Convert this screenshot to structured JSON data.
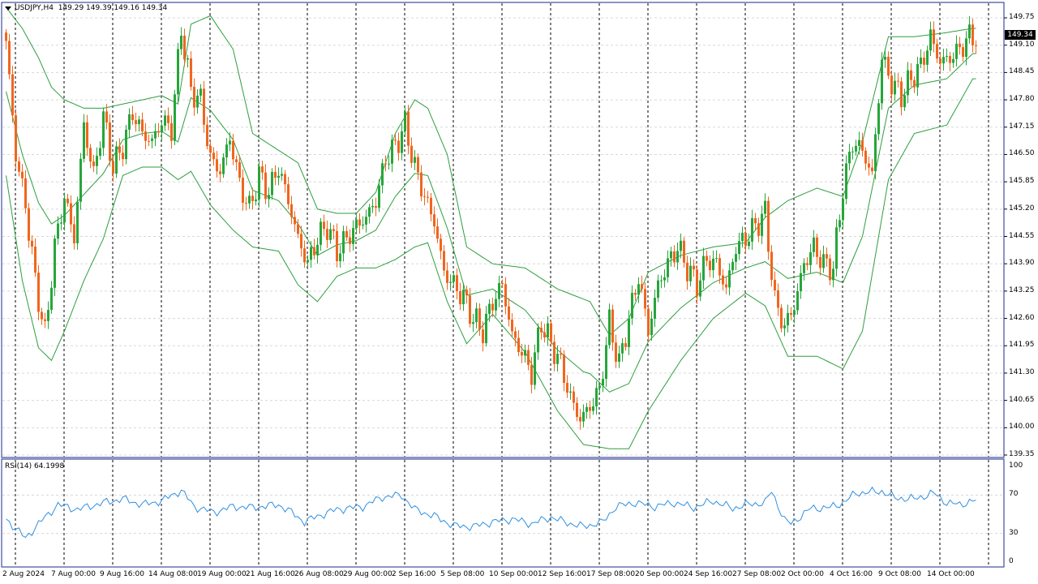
{
  "symbol_header": {
    "symbol": "USDJPY,H4",
    "ohlc": "149.29 149.39 149.16 149.34"
  },
  "price_axis": {
    "labels": [
      "149.75",
      "149.10",
      "148.45",
      "147.80",
      "147.15",
      "146.50",
      "145.85",
      "145.20",
      "144.55",
      "143.90",
      "143.25",
      "142.60",
      "141.95",
      "141.30",
      "140.65",
      "140.00",
      "139.35"
    ],
    "current_price": "149.34"
  },
  "rsi": {
    "label": "RSI(14) 64.1998",
    "axis_labels": [
      "100",
      "70",
      "30",
      "0"
    ]
  },
  "time_axis": {
    "labels": [
      "2 Aug 2024",
      "7 Aug 00:00",
      "9 Aug 16:00",
      "14 Aug 08:00",
      "19 Aug 00:00",
      "21 Aug 16:00",
      "26 Aug 08:00",
      "29 Aug 00:00",
      "2 Sep 16:00",
      "5 Sep 08:00",
      "10 Sep 00:00",
      "12 Sep 16:00",
      "17 Sep 08:00",
      "20 Sep 00:00",
      "24 Sep 16:00",
      "27 Sep 08:00",
      "2 Oct 00:00",
      "4 Oct 16:00",
      "9 Oct 08:00",
      "14 Oct 00:00"
    ]
  },
  "colors": {
    "bull": "#26a63a",
    "bear": "#f0661e",
    "bands": "#2e9e3e",
    "rsi_line": "#2f8fe0",
    "grid": "#d8d8d8",
    "frame": "#1a2a8a"
  },
  "chart_data": {
    "type": "candlestick",
    "anchors_close": [
      [
        0,
        149.2
      ],
      [
        3,
        146.5
      ],
      [
        6,
        145.3
      ],
      [
        9,
        143.5
      ],
      [
        12,
        142.2
      ],
      [
        15,
        144.3
      ],
      [
        18,
        145.5
      ],
      [
        21,
        144.5
      ],
      [
        24,
        147.2
      ],
      [
        27,
        146.0
      ],
      [
        30,
        147.4
      ],
      [
        33,
        146.2
      ],
      [
        36,
        146.7
      ],
      [
        39,
        147.5
      ],
      [
        42,
        147.0
      ],
      [
        45,
        146.8
      ],
      [
        48,
        147.3
      ],
      [
        51,
        147.1
      ],
      [
        54,
        149.5
      ],
      [
        57,
        148.0
      ],
      [
        60,
        147.8
      ],
      [
        63,
        146.4
      ],
      [
        66,
        146.1
      ],
      [
        69,
        146.9
      ],
      [
        72,
        145.8
      ],
      [
        75,
        145.2
      ],
      [
        78,
        146.0
      ],
      [
        81,
        145.6
      ],
      [
        84,
        146.2
      ],
      [
        87,
        145.4
      ],
      [
        90,
        144.5
      ],
      [
        93,
        143.9
      ],
      [
        96,
        144.5
      ],
      [
        99,
        144.8
      ],
      [
        102,
        144.2
      ],
      [
        105,
        144.5
      ],
      [
        108,
        144.8
      ],
      [
        111,
        145.0
      ],
      [
        114,
        145.4
      ],
      [
        117,
        146.4
      ],
      [
        120,
        146.7
      ],
      [
        123,
        147.2
      ],
      [
        126,
        146.2
      ],
      [
        129,
        145.5
      ],
      [
        132,
        144.9
      ],
      [
        135,
        143.7
      ],
      [
        138,
        143.4
      ],
      [
        141,
        143.1
      ],
      [
        144,
        142.6
      ],
      [
        147,
        142.3
      ],
      [
        150,
        143.0
      ],
      [
        153,
        143.4
      ],
      [
        156,
        142.2
      ],
      [
        159,
        141.8
      ],
      [
        162,
        141.3
      ],
      [
        165,
        142.5
      ],
      [
        168,
        142.0
      ],
      [
        171,
        141.5
      ],
      [
        174,
        140.7
      ],
      [
        177,
        140.2
      ],
      [
        180,
        140.5
      ],
      [
        183,
        140.9
      ],
      [
        186,
        142.5
      ],
      [
        189,
        141.5
      ],
      [
        192,
        142.6
      ],
      [
        195,
        143.6
      ],
      [
        198,
        142.3
      ],
      [
        201,
        143.4
      ],
      [
        204,
        143.9
      ],
      [
        207,
        144.3
      ],
      [
        210,
        143.8
      ],
      [
        213,
        143.4
      ],
      [
        216,
        144.0
      ],
      [
        219,
        143.9
      ],
      [
        222,
        143.3
      ],
      [
        225,
        144.3
      ],
      [
        228,
        144.5
      ],
      [
        231,
        144.8
      ],
      [
        234,
        145.1
      ],
      [
        237,
        143.0
      ],
      [
        240,
        142.4
      ],
      [
        243,
        142.9
      ],
      [
        246,
        143.9
      ],
      [
        249,
        144.3
      ],
      [
        252,
        143.9
      ],
      [
        255,
        143.8
      ],
      [
        258,
        145.7
      ],
      [
        261,
        146.8
      ],
      [
        264,
        146.6
      ],
      [
        267,
        146.0
      ],
      [
        270,
        148.8
      ],
      [
        273,
        148.2
      ],
      [
        276,
        147.9
      ],
      [
        279,
        148.3
      ],
      [
        282,
        148.6
      ],
      [
        285,
        149.3
      ],
      [
        288,
        148.7
      ],
      [
        291,
        148.8
      ],
      [
        294,
        149.0
      ],
      [
        297,
        149.3
      ]
    ],
    "bands_upper_anchors": [
      [
        0,
        150
      ],
      [
        5,
        149.5
      ],
      [
        10,
        148.8
      ],
      [
        14,
        148.1
      ],
      [
        18,
        147.8
      ],
      [
        24,
        147.6
      ],
      [
        30,
        147.6
      ],
      [
        36,
        147.7
      ],
      [
        42,
        147.8
      ],
      [
        48,
        147.9
      ],
      [
        53,
        147.7
      ],
      [
        57,
        149.6
      ],
      [
        63,
        149.8
      ],
      [
        70,
        149.0
      ],
      [
        76,
        147.0
      ],
      [
        84,
        146.6
      ],
      [
        90,
        146.3
      ],
      [
        96,
        145.2
      ],
      [
        102,
        145.1
      ],
      [
        108,
        145.1
      ],
      [
        114,
        145.6
      ],
      [
        120,
        147.0
      ],
      [
        126,
        147.8
      ],
      [
        130,
        147.6
      ],
      [
        136,
        146.5
      ],
      [
        142,
        144.3
      ],
      [
        150,
        143.9
      ],
      [
        160,
        143.8
      ],
      [
        170,
        143.3
      ],
      [
        180,
        143.0
      ],
      [
        186,
        142.2
      ],
      [
        192,
        142.6
      ],
      [
        198,
        143.7
      ],
      [
        208,
        144.1
      ],
      [
        218,
        144.3
      ],
      [
        228,
        144.4
      ],
      [
        234,
        145.0
      ],
      [
        241,
        145.4
      ],
      [
        250,
        145.7
      ],
      [
        258,
        145.5
      ],
      [
        264,
        146.8
      ],
      [
        272,
        149.3
      ],
      [
        280,
        149.3
      ],
      [
        290,
        149.4
      ],
      [
        298,
        149.5
      ]
    ],
    "bands_lower_anchors": [
      [
        0,
        146
      ],
      [
        5,
        143.5
      ],
      [
        10,
        141.9
      ],
      [
        14,
        141.6
      ],
      [
        18,
        142.3
      ],
      [
        24,
        143.5
      ],
      [
        30,
        144.5
      ],
      [
        36,
        146.0
      ],
      [
        42,
        146.2
      ],
      [
        48,
        146.2
      ],
      [
        53,
        145.9
      ],
      [
        57,
        146.1
      ],
      [
        63,
        145.3
      ],
      [
        70,
        144.7
      ],
      [
        76,
        144.3
      ],
      [
        84,
        144.2
      ],
      [
        90,
        143.4
      ],
      [
        96,
        143.0
      ],
      [
        102,
        143.6
      ],
      [
        108,
        143.8
      ],
      [
        114,
        143.8
      ],
      [
        120,
        144.0
      ],
      [
        126,
        144.3
      ],
      [
        130,
        144.4
      ],
      [
        136,
        143.0
      ],
      [
        142,
        142.0
      ],
      [
        150,
        142.7
      ],
      [
        160,
        141.8
      ],
      [
        170,
        140.4
      ],
      [
        178,
        139.6
      ],
      [
        186,
        139.5
      ],
      [
        192,
        139.5
      ],
      [
        198,
        140.4
      ],
      [
        208,
        141.6
      ],
      [
        218,
        142.6
      ],
      [
        228,
        143.2
      ],
      [
        234,
        142.9
      ],
      [
        241,
        141.7
      ],
      [
        250,
        141.7
      ],
      [
        258,
        141.4
      ],
      [
        264,
        142.3
      ],
      [
        272,
        145.9
      ],
      [
        280,
        147.0
      ],
      [
        290,
        147.2
      ],
      [
        298,
        148.3
      ]
    ],
    "rsi_anchors": [
      [
        0,
        45
      ],
      [
        6,
        25
      ],
      [
        10,
        40
      ],
      [
        16,
        60
      ],
      [
        22,
        55
      ],
      [
        30,
        62
      ],
      [
        36,
        66
      ],
      [
        42,
        60
      ],
      [
        48,
        64
      ],
      [
        54,
        75
      ],
      [
        58,
        58
      ],
      [
        64,
        52
      ],
      [
        70,
        58
      ],
      [
        76,
        57
      ],
      [
        84,
        60
      ],
      [
        88,
        52
      ],
      [
        92,
        42
      ],
      [
        96,
        48
      ],
      [
        102,
        55
      ],
      [
        110,
        58
      ],
      [
        116,
        68
      ],
      [
        122,
        70
      ],
      [
        126,
        55
      ],
      [
        132,
        48
      ],
      [
        138,
        38
      ],
      [
        144,
        37
      ],
      [
        150,
        42
      ],
      [
        156,
        45
      ],
      [
        162,
        40
      ],
      [
        168,
        47
      ],
      [
        172,
        42
      ],
      [
        178,
        37
      ],
      [
        184,
        42
      ],
      [
        188,
        58
      ],
      [
        194,
        62
      ],
      [
        200,
        58
      ],
      [
        206,
        62
      ],
      [
        212,
        57
      ],
      [
        218,
        64
      ],
      [
        224,
        56
      ],
      [
        228,
        60
      ],
      [
        234,
        62
      ],
      [
        236,
        74
      ],
      [
        240,
        44
      ],
      [
        242,
        40
      ],
      [
        248,
        56
      ],
      [
        254,
        57
      ],
      [
        258,
        62
      ],
      [
        262,
        72
      ],
      [
        270,
        74
      ],
      [
        274,
        67
      ],
      [
        280,
        66
      ],
      [
        286,
        72
      ],
      [
        290,
        62
      ],
      [
        294,
        60
      ],
      [
        298,
        64
      ]
    ],
    "ylim": [
      139.35,
      149.75
    ],
    "rsi_ylim": [
      0,
      100
    ]
  }
}
